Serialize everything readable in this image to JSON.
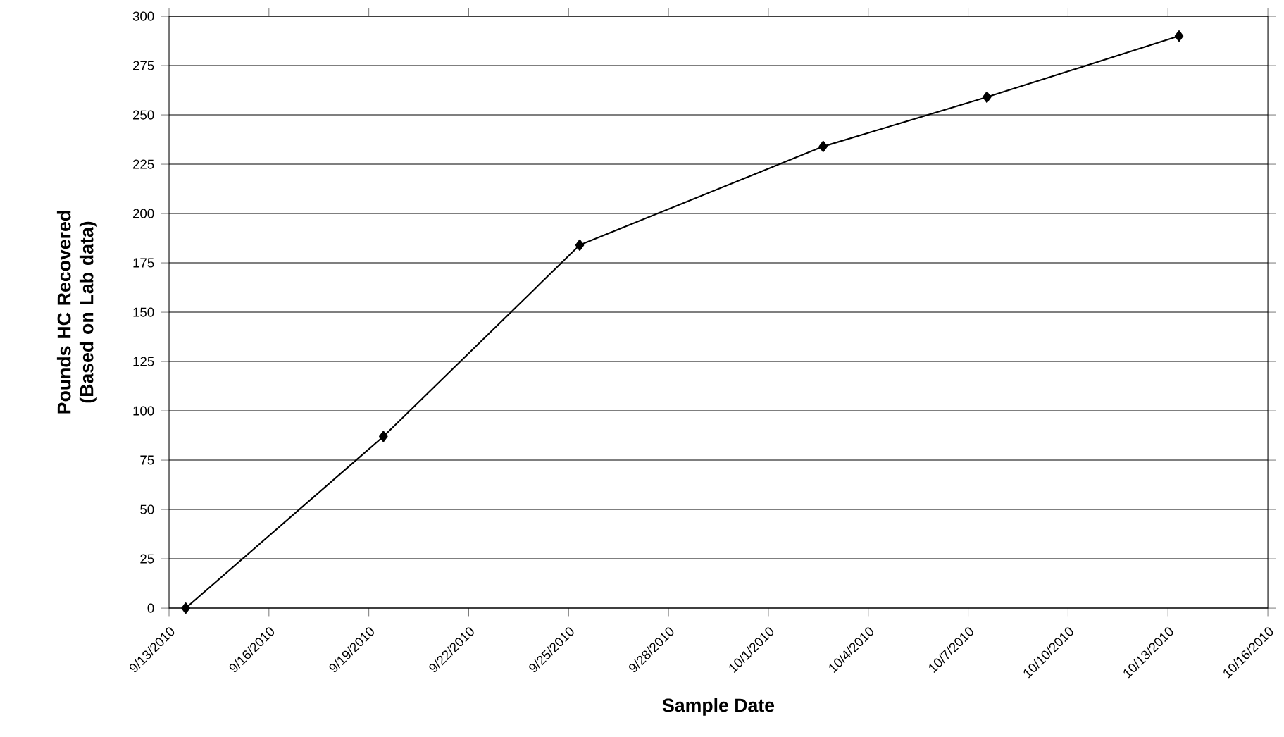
{
  "chart_data": {
    "type": "line",
    "xlabel": "Sample Date",
    "ylabel": "Pounds HC Recovered (Based on Lab data)",
    "x": [
      "2010-09-13T12:00",
      "2010-09-19T10:30",
      "2010-09-25T08:00",
      "2010-10-02T15:30",
      "2010-10-07T13:30",
      "2010-10-13T08:00"
    ],
    "series": [
      {
        "color": "#000000",
        "values": [
          0,
          87,
          184,
          234,
          259,
          290
        ]
      }
    ],
    "xlim": [
      "2010-09-13",
      "2010-10-16"
    ],
    "xticks": [
      {
        "value": "2010-09-13",
        "label": "9/13/2010"
      },
      {
        "value": "2010-09-16",
        "label": "9/16/2010"
      },
      {
        "value": "2010-09-19",
        "label": "9/19/2010"
      },
      {
        "value": "2010-09-22",
        "label": "9/22/2010"
      },
      {
        "value": "2010-09-25",
        "label": "9/25/2010"
      },
      {
        "value": "2010-09-28",
        "label": "9/28/2010"
      },
      {
        "value": "2010-10-01",
        "label": "10/1/2010"
      },
      {
        "value": "2010-10-04",
        "label": "10/4/2010"
      },
      {
        "value": "2010-10-07",
        "label": "10/7/2010"
      },
      {
        "value": "2010-10-10",
        "label": "10/10/2010"
      },
      {
        "value": "2010-10-13",
        "label": "10/13/2010"
      },
      {
        "value": "2010-10-16",
        "label": "10/16/2010"
      }
    ],
    "ylim": [
      0,
      300
    ],
    "yticks": [
      0,
      25,
      50,
      75,
      100,
      125,
      150,
      175,
      200,
      225,
      250,
      275,
      300
    ],
    "grid": "y",
    "marker": "diamond",
    "line_style": "solid"
  }
}
